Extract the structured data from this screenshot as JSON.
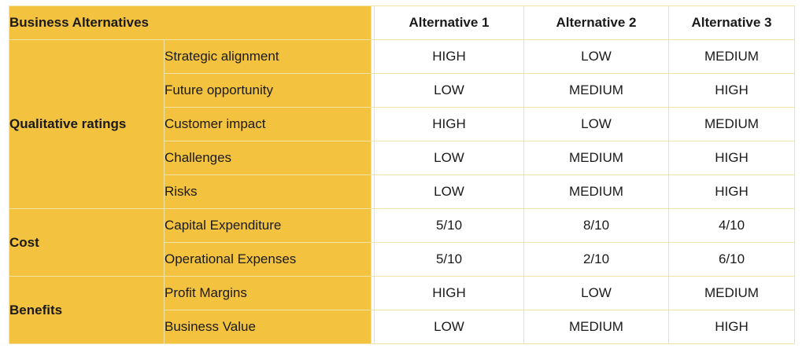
{
  "header": {
    "title": "Business Alternatives",
    "alternatives": [
      "Alternative 1",
      "Alternative 2",
      "Alternative 3"
    ]
  },
  "groups": {
    "qualitative": "Qualitative ratings",
    "cost": "Cost",
    "benefits": "Benefits"
  },
  "rows": [
    {
      "criterion": "Strategic alignment",
      "values": [
        "HIGH",
        "LOW",
        "MEDIUM"
      ]
    },
    {
      "criterion": "Future opportunity",
      "values": [
        "LOW",
        "MEDIUM",
        "HIGH"
      ]
    },
    {
      "criterion": "Customer impact",
      "values": [
        "HIGH",
        "LOW",
        "MEDIUM"
      ]
    },
    {
      "criterion": "Challenges",
      "values": [
        "LOW",
        "MEDIUM",
        "HIGH"
      ]
    },
    {
      "criterion": "Risks",
      "values": [
        "LOW",
        "MEDIUM",
        "HIGH"
      ]
    },
    {
      "criterion": "Capital Expenditure",
      "values": [
        "5/10",
        "8/10",
        "4/10"
      ]
    },
    {
      "criterion": "Operational Expenses",
      "values": [
        "5/10",
        "2/10",
        "6/10"
      ]
    },
    {
      "criterion": "Profit Margins",
      "values": [
        "HIGH",
        "LOW",
        "MEDIUM"
      ]
    },
    {
      "criterion": "Business Value",
      "values": [
        "LOW",
        "MEDIUM",
        "HIGH"
      ]
    }
  ],
  "colors": {
    "accent": "#f3c23f",
    "border": "#f2e3a8",
    "background": "#ffffff"
  }
}
